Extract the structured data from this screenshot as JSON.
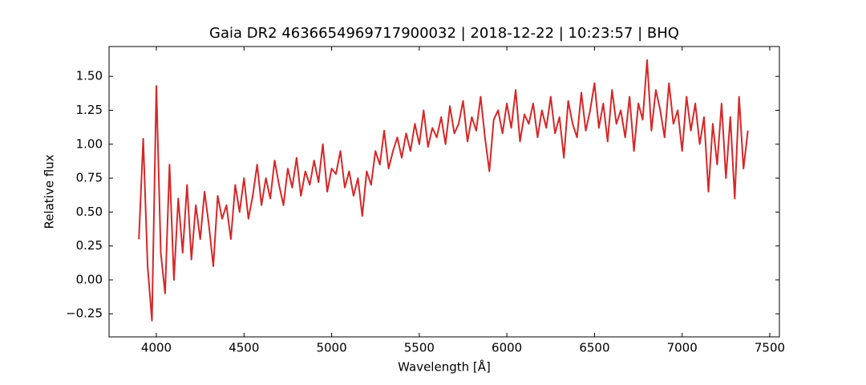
{
  "chart_data": {
    "type": "line",
    "title": "Gaia DR2 4636654969717900032 | 2018-12-22 | 10:23:57 | BHQ",
    "x_label": "Wavelength [Å]",
    "y_label": "Relative flux",
    "color": "#d62728",
    "x": [
      3900,
      3925,
      3950,
      3975,
      4000,
      4025,
      4050,
      4075,
      4100,
      4125,
      4150,
      4175,
      4200,
      4225,
      4250,
      4275,
      4300,
      4325,
      4350,
      4375,
      4400,
      4425,
      4450,
      4475,
      4500,
      4525,
      4550,
      4575,
      4600,
      4625,
      4650,
      4675,
      4700,
      4725,
      4750,
      4775,
      4800,
      4825,
      4850,
      4875,
      4900,
      4925,
      4950,
      4975,
      5000,
      5025,
      5050,
      5075,
      5100,
      5125,
      5150,
      5175,
      5200,
      5225,
      5250,
      5275,
      5300,
      5325,
      5350,
      5375,
      5400,
      5425,
      5450,
      5475,
      5500,
      5525,
      5550,
      5575,
      5600,
      5625,
      5650,
      5675,
      5700,
      5725,
      5750,
      5775,
      5800,
      5825,
      5850,
      5875,
      5900,
      5925,
      5950,
      5975,
      6000,
      6025,
      6050,
      6075,
      6100,
      6125,
      6150,
      6175,
      6200,
      6225,
      6250,
      6275,
      6300,
      6325,
      6350,
      6375,
      6400,
      6425,
      6450,
      6475,
      6500,
      6525,
      6550,
      6575,
      6600,
      6625,
      6650,
      6675,
      6700,
      6725,
      6750,
      6775,
      6800,
      6825,
      6850,
      6875,
      6900,
      6925,
      6950,
      6975,
      7000,
      7025,
      7050,
      7075,
      7100,
      7125,
      7150,
      7175,
      7200,
      7225,
      7250,
      7275,
      7300,
      7325,
      7350,
      7375
    ],
    "values": [
      0.3,
      1.04,
      0.1,
      -0.3,
      1.43,
      0.2,
      -0.1,
      0.85,
      0.0,
      0.6,
      0.2,
      0.7,
      0.15,
      0.55,
      0.3,
      0.65,
      0.4,
      0.1,
      0.62,
      0.45,
      0.55,
      0.3,
      0.7,
      0.5,
      0.75,
      0.45,
      0.62,
      0.85,
      0.55,
      0.75,
      0.6,
      0.88,
      0.7,
      0.55,
      0.82,
      0.68,
      0.9,
      0.62,
      0.8,
      0.7,
      0.88,
      0.72,
      1.0,
      0.65,
      0.82,
      0.78,
      0.95,
      0.68,
      0.8,
      0.62,
      0.75,
      0.47,
      0.8,
      0.7,
      0.95,
      0.85,
      1.1,
      0.82,
      0.95,
      1.05,
      0.9,
      1.08,
      0.95,
      1.15,
      1.0,
      1.25,
      0.98,
      1.12,
      1.05,
      1.2,
      1.0,
      1.28,
      1.08,
      1.15,
      1.32,
      1.02,
      1.2,
      1.1,
      1.35,
      1.05,
      0.8,
      1.18,
      1.25,
      1.08,
      1.3,
      1.12,
      1.4,
      1.02,
      1.22,
      1.15,
      1.3,
      1.05,
      1.25,
      1.12,
      1.35,
      1.08,
      1.2,
      0.9,
      1.32,
      1.15,
      1.05,
      1.38,
      1.1,
      1.25,
      1.45,
      1.12,
      1.3,
      1.02,
      1.4,
      1.15,
      1.25,
      1.05,
      1.35,
      0.95,
      1.3,
      1.18,
      1.62,
      1.1,
      1.4,
      1.25,
      1.05,
      1.45,
      1.15,
      1.25,
      0.95,
      1.35,
      1.1,
      1.3,
      1.0,
      1.2,
      0.65,
      1.15,
      0.85,
      1.3,
      0.75,
      1.2,
      0.6,
      1.35,
      0.82,
      1.1
    ],
    "xlim": [
      3730,
      7555
    ],
    "ylim": [
      -0.42,
      1.72
    ],
    "xticks": [
      4000,
      4500,
      5000,
      5500,
      6000,
      6500,
      7000,
      7500
    ],
    "yticks": [
      {
        "value": -0.25,
        "label": "−0.25"
      },
      {
        "value": 0,
        "label": "0.00"
      },
      {
        "value": 0.25,
        "label": "0.25"
      },
      {
        "value": 0.5,
        "label": "0.50"
      },
      {
        "value": 0.75,
        "label": "0.75"
      },
      {
        "value": 1,
        "label": "1.00"
      },
      {
        "value": 1.25,
        "label": "1.25"
      },
      {
        "value": 1.5,
        "label": "1.50"
      }
    ],
    "grid": false
  }
}
